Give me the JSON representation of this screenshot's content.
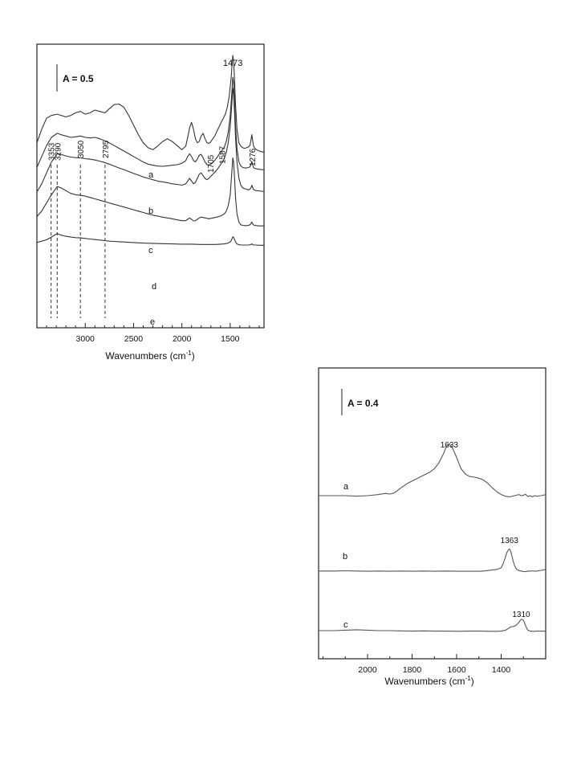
{
  "chart_data": [
    {
      "type": "line",
      "xlabel": "Wavenumbers (cm⁻¹)",
      "xlim": [
        3500,
        1150
      ],
      "x_reversed": true,
      "xticks": [
        3000,
        2500,
        2000,
        1500
      ],
      "scale_bar": "A = 0.5",
      "peak_labels": [
        "3353",
        "3290",
        "3050",
        "2795",
        "1705",
        "1587",
        "1473",
        "1276"
      ],
      "dashed_markers": [
        3353,
        3290,
        3050,
        2795
      ],
      "series": [
        {
          "name": "a",
          "x": [
            3500,
            3450,
            3400,
            3353,
            3290,
            3200,
            3150,
            3100,
            3050,
            3000,
            2950,
            2900,
            2850,
            2795,
            2750,
            2700,
            2650,
            2600,
            2550,
            2500,
            2450,
            2400,
            2350,
            2300,
            2250,
            2200,
            2150,
            2100,
            2050,
            2000,
            1960,
            1940,
            1920,
            1900,
            1880,
            1860,
            1840,
            1820,
            1800,
            1780,
            1760,
            1740,
            1720,
            1700,
            1680,
            1660,
            1640,
            1620,
            1600,
            1587,
            1570,
            1550,
            1530,
            1510,
            1490,
            1480,
            1473,
            1465,
            1455,
            1445,
            1430,
            1410,
            1390,
            1370,
            1350,
            1330,
            1310,
            1295,
            1285,
            1276,
            1268,
            1260,
            1250,
            1230,
            1200,
            1180,
            1150
          ],
          "y": [
            1.3,
            1.8,
            2.2,
            2.3,
            2.35,
            2.25,
            2.3,
            2.4,
            2.45,
            2.35,
            2.4,
            2.5,
            2.45,
            2.4,
            2.55,
            2.7,
            2.72,
            2.6,
            2.3,
            1.95,
            1.6,
            1.3,
            1.12,
            1.05,
            1.18,
            1.35,
            1.45,
            1.35,
            1.2,
            1.05,
            1.18,
            1.5,
            1.85,
            2.05,
            1.8,
            1.45,
            1.3,
            1.35,
            1.55,
            1.65,
            1.45,
            1.3,
            1.28,
            1.35,
            1.45,
            1.55,
            1.7,
            1.85,
            2.0,
            2.1,
            2.2,
            2.35,
            2.6,
            3.0,
            3.7,
            4.2,
            4.5,
            4.3,
            3.6,
            2.7,
            1.8,
            1.3,
            1.18,
            1.12,
            1.1,
            1.12,
            1.15,
            1.2,
            1.4,
            1.6,
            1.4,
            1.2,
            1.12,
            1.05,
            1.0,
            0.98,
            0.96
          ]
        },
        {
          "name": "b",
          "x": [
            3500,
            3450,
            3400,
            3350,
            3290,
            3250,
            3200,
            3150,
            3100,
            3050,
            3000,
            2950,
            2900,
            2850,
            2800,
            2750,
            2700,
            2650,
            2600,
            2550,
            2500,
            2450,
            2400,
            2350,
            2300,
            2250,
            2200,
            2150,
            2100,
            2050,
            2000,
            1960,
            1940,
            1920,
            1900,
            1880,
            1860,
            1840,
            1820,
            1800,
            1780,
            1760,
            1740,
            1720,
            1700,
            1680,
            1660,
            1640,
            1620,
            1600,
            1580,
            1560,
            1540,
            1520,
            1500,
            1490,
            1480,
            1473,
            1465,
            1455,
            1445,
            1430,
            1410,
            1390,
            1370,
            1350,
            1330,
            1310,
            1295,
            1285,
            1276,
            1268,
            1260,
            1250,
            1230,
            1200,
            1180,
            1150
          ],
          "y": [
            0.4,
            0.8,
            1.2,
            1.5,
            1.65,
            1.6,
            1.55,
            1.5,
            1.52,
            1.55,
            1.5,
            1.48,
            1.5,
            1.45,
            1.38,
            1.3,
            1.2,
            1.1,
            1.0,
            0.9,
            0.8,
            0.7,
            0.6,
            0.52,
            0.48,
            0.45,
            0.44,
            0.46,
            0.48,
            0.5,
            0.55,
            0.65,
            0.8,
            0.9,
            0.8,
            0.65,
            0.6,
            0.7,
            0.85,
            0.88,
            0.75,
            0.6,
            0.5,
            0.48,
            0.52,
            0.58,
            0.66,
            0.75,
            0.85,
            0.95,
            1.05,
            1.15,
            1.35,
            1.7,
            2.3,
            2.8,
            3.3,
            3.7,
            3.5,
            2.8,
            1.9,
            1.1,
            0.6,
            0.45,
            0.4,
            0.38,
            0.38,
            0.4,
            0.42,
            0.5,
            0.62,
            0.5,
            0.4,
            0.37,
            0.35,
            0.33,
            0.32,
            0.31
          ]
        },
        {
          "name": "c",
          "x": [
            3500,
            3450,
            3400,
            3350,
            3290,
            3250,
            3200,
            3150,
            3100,
            3050,
            3000,
            2950,
            2900,
            2850,
            2800,
            2750,
            2700,
            2650,
            2600,
            2550,
            2500,
            2450,
            2400,
            2350,
            2300,
            2250,
            2200,
            2150,
            2100,
            2050,
            2000,
            1960,
            1940,
            1920,
            1900,
            1880,
            1860,
            1840,
            1820,
            1800,
            1780,
            1760,
            1740,
            1720,
            1700,
            1680,
            1660,
            1640,
            1620,
            1600,
            1580,
            1560,
            1540,
            1520,
            1500,
            1490,
            1480,
            1473,
            1465,
            1455,
            1445,
            1430,
            1410,
            1390,
            1370,
            1350,
            1330,
            1310,
            1295,
            1285,
            1276,
            1268,
            1260,
            1250,
            1230,
            1200,
            1180,
            1150
          ],
          "y": [
            -0.5,
            -0.2,
            0.2,
            0.6,
            0.9,
            0.88,
            0.82,
            0.78,
            0.76,
            0.75,
            0.72,
            0.7,
            0.67,
            0.63,
            0.58,
            0.52,
            0.45,
            0.38,
            0.32,
            0.25,
            0.18,
            0.12,
            0.05,
            0.0,
            -0.05,
            -0.1,
            -0.13,
            -0.16,
            -0.2,
            -0.22,
            -0.25,
            -0.2,
            -0.1,
            0.0,
            -0.1,
            -0.2,
            -0.15,
            0.0,
            0.15,
            0.2,
            0.1,
            0.0,
            -0.05,
            0.0,
            0.08,
            0.15,
            0.22,
            0.3,
            0.4,
            0.5,
            0.6,
            0.75,
            0.95,
            1.3,
            1.9,
            2.4,
            2.9,
            3.3,
            3.1,
            2.4,
            1.5,
            0.6,
            0.0,
            -0.25,
            -0.35,
            -0.38,
            -0.4,
            -0.42,
            -0.4,
            -0.35,
            -0.25,
            -0.33,
            -0.4,
            -0.43,
            -0.45,
            -0.46,
            -0.47,
            -0.48
          ]
        },
        {
          "name": "d",
          "x": [
            3500,
            3450,
            3400,
            3350,
            3290,
            3250,
            3200,
            3150,
            3100,
            3050,
            3000,
            2950,
            2900,
            2850,
            2800,
            2750,
            2700,
            2650,
            2600,
            2550,
            2500,
            2450,
            2400,
            2350,
            2300,
            2250,
            2200,
            2150,
            2100,
            2050,
            2000,
            1960,
            1940,
            1920,
            1900,
            1880,
            1860,
            1840,
            1820,
            1800,
            1760,
            1720,
            1680,
            1640,
            1600,
            1560,
            1540,
            1520,
            1500,
            1490,
            1480,
            1473,
            1465,
            1455,
            1445,
            1430,
            1410,
            1390,
            1370,
            1350,
            1330,
            1310,
            1295,
            1285,
            1276,
            1268,
            1260,
            1250,
            1230,
            1200,
            1180,
            1150
          ],
          "y": [
            -1.4,
            -1.2,
            -0.9,
            -0.6,
            -0.3,
            -0.35,
            -0.45,
            -0.55,
            -0.6,
            -0.62,
            -0.65,
            -0.7,
            -0.75,
            -0.8,
            -0.85,
            -0.9,
            -0.95,
            -1.0,
            -1.05,
            -1.1,
            -1.15,
            -1.2,
            -1.25,
            -1.3,
            -1.35,
            -1.38,
            -1.42,
            -1.45,
            -1.48,
            -1.52,
            -1.55,
            -1.55,
            -1.5,
            -1.45,
            -1.5,
            -1.56,
            -1.55,
            -1.5,
            -1.45,
            -1.42,
            -1.45,
            -1.48,
            -1.45,
            -1.42,
            -1.38,
            -1.3,
            -1.2,
            -1.0,
            -0.6,
            -0.1,
            0.4,
            0.75,
            0.6,
            0.0,
            -0.7,
            -1.3,
            -1.6,
            -1.7,
            -1.72,
            -1.73,
            -1.73,
            -1.72,
            -1.7,
            -1.65,
            -1.6,
            -1.66,
            -1.7,
            -1.72,
            -1.73,
            -1.74,
            -1.74,
            -1.74
          ]
        },
        {
          "name": "e",
          "x": [
            3500,
            3450,
            3400,
            3350,
            3290,
            3250,
            3200,
            3150,
            3100,
            3050,
            3000,
            2950,
            2900,
            2850,
            2800,
            2750,
            2700,
            2650,
            2600,
            2550,
            2500,
            2400,
            2300,
            2200,
            2100,
            2000,
            1900,
            1800,
            1700,
            1650,
            1600,
            1560,
            1530,
            1500,
            1490,
            1480,
            1473,
            1465,
            1455,
            1445,
            1430,
            1410,
            1390,
            1370,
            1350,
            1330,
            1310,
            1295,
            1285,
            1276,
            1268,
            1260,
            1250,
            1230,
            1200,
            1180,
            1150
          ],
          "y": [
            -2.35,
            -2.3,
            -2.25,
            -2.15,
            -2.02,
            -2.08,
            -2.12,
            -2.15,
            -2.17,
            -2.18,
            -2.2,
            -2.22,
            -2.24,
            -2.26,
            -2.28,
            -2.3,
            -2.31,
            -2.32,
            -2.33,
            -2.34,
            -2.35,
            -2.37,
            -2.38,
            -2.39,
            -2.4,
            -2.41,
            -2.41,
            -2.42,
            -2.42,
            -2.42,
            -2.41,
            -2.4,
            -2.38,
            -2.33,
            -2.28,
            -2.2,
            -2.14,
            -2.16,
            -2.24,
            -2.33,
            -2.4,
            -2.43,
            -2.44,
            -2.44,
            -2.44,
            -2.44,
            -2.44,
            -2.43,
            -2.42,
            -2.4,
            -2.42,
            -2.44,
            -2.44,
            -2.44,
            -2.45,
            -2.45,
            -2.45
          ]
        }
      ]
    },
    {
      "type": "line",
      "xlabel": "Wavenumbers (cm⁻¹)",
      "xlim": [
        2220,
        1200
      ],
      "x_reversed": true,
      "xticks": [
        2000,
        1800,
        1600,
        1400
      ],
      "scale_bar": "A = 0.4",
      "peak_labels": [
        "1633",
        "1363",
        "1310"
      ],
      "series": [
        {
          "name": "a",
          "x": [
            2220,
            2150,
            2100,
            2050,
            2000,
            1950,
            1920,
            1900,
            1880,
            1850,
            1820,
            1800,
            1780,
            1760,
            1740,
            1720,
            1700,
            1680,
            1660,
            1645,
            1633,
            1620,
            1600,
            1580,
            1560,
            1540,
            1520,
            1500,
            1480,
            1460,
            1440,
            1420,
            1400,
            1380,
            1360,
            1340,
            1320,
            1310,
            1300,
            1290,
            1280,
            1270,
            1260,
            1250,
            1240,
            1220,
            1200
          ],
          "y": [
            0.0,
            0.0,
            0.0,
            -0.02,
            0.0,
            0.05,
            0.1,
            0.07,
            0.12,
            0.35,
            0.55,
            0.65,
            0.75,
            0.85,
            0.95,
            1.05,
            1.2,
            1.45,
            1.85,
            2.2,
            2.3,
            2.15,
            1.7,
            1.2,
            0.95,
            0.85,
            0.82,
            0.78,
            0.7,
            0.55,
            0.35,
            0.18,
            0.05,
            -0.03,
            -0.05,
            0.0,
            0.05,
            0.0,
            0.02,
            0.06,
            -0.04,
            0.0,
            -0.05,
            0.0,
            -0.02,
            0.0,
            0.05
          ]
        },
        {
          "name": "b",
          "x": [
            2220,
            2150,
            2100,
            2050,
            2000,
            1950,
            1900,
            1850,
            1800,
            1750,
            1700,
            1650,
            1600,
            1550,
            1500,
            1480,
            1460,
            1440,
            1420,
            1410,
            1400,
            1395,
            1390,
            1385,
            1380,
            1375,
            1370,
            1365,
            1363,
            1360,
            1355,
            1350,
            1345,
            1340,
            1335,
            1330,
            1320,
            1310,
            1300,
            1290,
            1280,
            1270,
            1260,
            1250,
            1240,
            1220,
            1200
          ],
          "y": [
            -3.35,
            -3.35,
            -3.34,
            -3.35,
            -3.36,
            -3.35,
            -3.36,
            -3.35,
            -3.36,
            -3.35,
            -3.36,
            -3.35,
            -3.36,
            -3.36,
            -3.36,
            -3.35,
            -3.33,
            -3.3,
            -3.28,
            -3.25,
            -3.2,
            -3.1,
            -3.0,
            -2.85,
            -2.7,
            -2.55,
            -2.45,
            -2.38,
            -2.37,
            -2.4,
            -2.55,
            -2.75,
            -2.95,
            -3.1,
            -3.2,
            -3.28,
            -3.33,
            -3.35,
            -3.37,
            -3.38,
            -3.35,
            -3.36,
            -3.34,
            -3.36,
            -3.35,
            -3.32,
            -3.28
          ]
        },
        {
          "name": "c",
          "x": [
            2220,
            2150,
            2100,
            2050,
            2000,
            1950,
            1900,
            1850,
            1800,
            1750,
            1700,
            1650,
            1600,
            1550,
            1500,
            1450,
            1420,
            1400,
            1380,
            1370,
            1360,
            1350,
            1340,
            1330,
            1320,
            1315,
            1310,
            1305,
            1300,
            1295,
            1290,
            1285,
            1280,
            1270,
            1260,
            1250,
            1240,
            1220,
            1200
          ],
          "y": [
            -6.0,
            -6.0,
            -5.98,
            -5.96,
            -5.98,
            -6.0,
            -6.0,
            -6.01,
            -6.02,
            -6.01,
            -6.02,
            -6.02,
            -6.03,
            -6.02,
            -6.02,
            -6.03,
            -6.03,
            -6.02,
            -5.98,
            -5.92,
            -5.85,
            -5.82,
            -5.8,
            -5.74,
            -5.62,
            -5.55,
            -5.5,
            -5.5,
            -5.55,
            -5.65,
            -5.78,
            -5.9,
            -5.98,
            -6.02,
            -6.03,
            -6.03,
            -6.02,
            -6.02,
            -6.02
          ]
        }
      ]
    }
  ]
}
